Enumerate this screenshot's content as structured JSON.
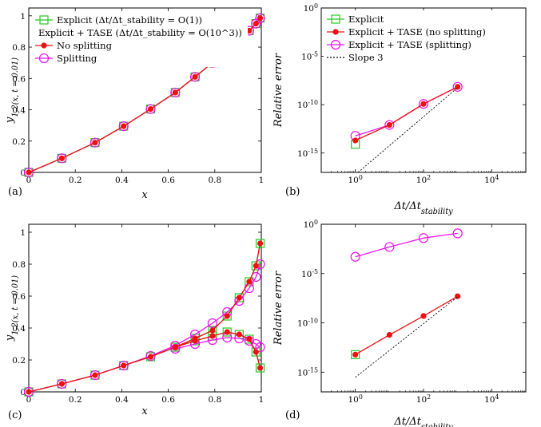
{
  "colors": {
    "explicit": "#22cc22",
    "tase_nosplit": "#ee1111",
    "tase_split": "#ee11ee",
    "slope": "#000000"
  },
  "chart_data": [
    {
      "id": "a",
      "type": "line",
      "panel_label": "(a)",
      "xlabel": "x",
      "ylabel": "y_1,2(x, t = 0.01)",
      "xlim": [
        0,
        1
      ],
      "ylim": [
        0,
        1.05
      ],
      "xticks": [
        0,
        0.2,
        0.4,
        0.6,
        0.8,
        1
      ],
      "xtick_labels": [
        "0",
        "0.2",
        "0.4",
        "0.6",
        "0.8",
        "1"
      ],
      "yticks": [
        0,
        0.2,
        0.4,
        0.6,
        0.8,
        1
      ],
      "ytick_labels": [
        "0",
        "0.2",
        "0.4",
        "0.6",
        "0.8",
        "1"
      ],
      "legend": {
        "position": "top-left",
        "entries": [
          {
            "series": "explicit",
            "label": "Explicit (Δt/Δt_stability = O(1))"
          },
          {
            "series": "tase_nosplit",
            "label": "Explicit + TASE (Δt/Δt_stability = O(10^3))"
          },
          {
            "series": "tase_nosplit",
            "label": "No splitting"
          },
          {
            "series": "tase_split",
            "label": "Splitting"
          }
        ]
      },
      "series": [
        {
          "key": "explicit",
          "name": "Explicit (Δt/Δt_stability = O(1))",
          "marker": "square",
          "x": [
            0,
            0.142,
            0.285,
            0.408,
            0.524,
            0.63,
            0.715,
            0.79,
            0.853,
            0.905,
            0.948,
            0.977,
            0.995
          ],
          "y": [
            0,
            0.09,
            0.19,
            0.295,
            0.405,
            0.51,
            0.61,
            0.7,
            0.78,
            0.85,
            0.905,
            0.95,
            0.985
          ]
        },
        {
          "key": "tase_split",
          "name": "Splitting",
          "marker": "circle",
          "x": [
            0,
            0.142,
            0.285,
            0.408,
            0.524,
            0.63,
            0.715,
            0.79,
            0.853,
            0.905,
            0.948,
            0.977,
            0.995
          ],
          "y": [
            0,
            0.09,
            0.19,
            0.295,
            0.405,
            0.51,
            0.61,
            0.7,
            0.78,
            0.85,
            0.905,
            0.95,
            0.985
          ]
        },
        {
          "key": "tase_nosplit",
          "name": "No splitting",
          "marker": "dot",
          "x": [
            0,
            0.142,
            0.285,
            0.408,
            0.524,
            0.63,
            0.715,
            0.79,
            0.853,
            0.905,
            0.948,
            0.977,
            0.995
          ],
          "y": [
            0,
            0.09,
            0.19,
            0.295,
            0.405,
            0.51,
            0.61,
            0.7,
            0.78,
            0.85,
            0.905,
            0.95,
            0.985
          ]
        }
      ]
    },
    {
      "id": "b",
      "type": "line",
      "panel_label": "(b)",
      "xscale": "log",
      "yscale": "log",
      "xlabel": "Δt/Δt_stability",
      "ylabel": "Relative error",
      "xlim": [
        0.1,
        100000
      ],
      "ylim": [
        1e-17,
        1
      ],
      "xticks": [
        1,
        100,
        10000
      ],
      "xtick_labels": [
        "10^0",
        "10^2",
        "10^4"
      ],
      "yticks": [
        1e-15,
        1e-10,
        1e-05,
        1
      ],
      "ytick_labels": [
        "10^-15",
        "10^-10",
        "10^-5",
        "10^0"
      ],
      "legend": {
        "position": "top-right",
        "entries": [
          {
            "series": "explicit",
            "label": "Explicit"
          },
          {
            "series": "tase_nosplit",
            "label": "Explicit + TASE (no splitting)"
          },
          {
            "series": "tase_split",
            "label": "Explicit + TASE (splitting)"
          },
          {
            "series": "slope",
            "label": "Slope 3"
          }
        ]
      },
      "series": [
        {
          "key": "explicit",
          "name": "Explicit",
          "marker": "square",
          "x": [
            1
          ],
          "y": [
            8e-15
          ]
        },
        {
          "key": "tase_split",
          "name": "Explicit + TASE (splitting)",
          "marker": "circle",
          "x": [
            1,
            10,
            100,
            1000
          ],
          "y": [
            6e-14,
            8e-13,
            1.2e-10,
            7e-09
          ]
        },
        {
          "key": "tase_nosplit",
          "name": "Explicit + TASE (no splitting)",
          "marker": "dot",
          "x": [
            1,
            10,
            100,
            1000
          ],
          "y": [
            2e-14,
            8e-13,
            1.2e-10,
            7e-09
          ]
        },
        {
          "key": "slope",
          "name": "Slope 3",
          "marker": "none",
          "dashed": true,
          "x": [
            1.2,
            1000
          ],
          "y": [
            1e-17,
            5.8e-09
          ]
        }
      ]
    },
    {
      "id": "c",
      "type": "line",
      "panel_label": "(c)",
      "xlabel": "x",
      "ylabel": "y_1,2(x, t = 0.01)",
      "xlim": [
        0,
        1
      ],
      "ylim": [
        0,
        1.05
      ],
      "xticks": [
        0,
        0.2,
        0.4,
        0.6,
        0.8,
        1
      ],
      "xtick_labels": [
        "0",
        "0.2",
        "0.4",
        "0.6",
        "0.8",
        "1"
      ],
      "yticks": [
        0,
        0.2,
        0.4,
        0.6,
        0.8,
        1
      ],
      "ytick_labels": [
        "0",
        "0.2",
        "0.4",
        "0.6",
        "0.8",
        "1"
      ],
      "series": [
        {
          "key": "explicit",
          "name": "y1 Explicit",
          "marker": "square",
          "x": [
            0,
            0.142,
            0.285,
            0.408,
            0.524,
            0.63,
            0.715,
            0.79,
            0.853,
            0.905,
            0.948,
            0.977,
            0.995
          ],
          "y": [
            0,
            0.05,
            0.105,
            0.165,
            0.22,
            0.28,
            0.335,
            0.385,
            0.475,
            0.59,
            0.69,
            0.79,
            0.93
          ]
        },
        {
          "key": "explicit",
          "name": "y2 Explicit",
          "marker": "square",
          "x": [
            0.63,
            0.715,
            0.79,
            0.853,
            0.905,
            0.948,
            0.977,
            0.995
          ],
          "y": [
            0.28,
            0.32,
            0.35,
            0.375,
            0.36,
            0.33,
            0.25,
            0.15
          ]
        },
        {
          "key": "tase_split",
          "name": "y1 Splitting",
          "marker": "circle",
          "x": [
            0,
            0.142,
            0.285,
            0.408,
            0.524,
            0.63,
            0.715,
            0.79,
            0.853,
            0.905,
            0.948,
            0.977,
            0.995
          ],
          "y": [
            0,
            0.05,
            0.105,
            0.165,
            0.225,
            0.29,
            0.36,
            0.43,
            0.5,
            0.57,
            0.65,
            0.72,
            0.8
          ]
        },
        {
          "key": "tase_split",
          "name": "y2 Splitting",
          "marker": "circle",
          "x": [
            0.63,
            0.715,
            0.79,
            0.853,
            0.905,
            0.948,
            0.977,
            0.995
          ],
          "y": [
            0.27,
            0.3,
            0.325,
            0.34,
            0.335,
            0.32,
            0.3,
            0.28
          ]
        },
        {
          "key": "tase_nosplit",
          "name": "y1 No splitting",
          "marker": "dot",
          "x": [
            0,
            0.142,
            0.285,
            0.408,
            0.524,
            0.63,
            0.715,
            0.79,
            0.853,
            0.905,
            0.948,
            0.977,
            0.995
          ],
          "y": [
            0,
            0.05,
            0.105,
            0.165,
            0.22,
            0.28,
            0.335,
            0.385,
            0.475,
            0.59,
            0.69,
            0.79,
            0.93
          ]
        },
        {
          "key": "tase_nosplit",
          "name": "y2 No splitting",
          "marker": "dot",
          "x": [
            0.63,
            0.715,
            0.79,
            0.853,
            0.905,
            0.948,
            0.977,
            0.995
          ],
          "y": [
            0.28,
            0.32,
            0.35,
            0.375,
            0.36,
            0.33,
            0.25,
            0.15
          ]
        }
      ]
    },
    {
      "id": "d",
      "type": "line",
      "panel_label": "(d)",
      "xscale": "log",
      "yscale": "log",
      "xlabel": "Δt/Δt_stability",
      "ylabel": "Relative error",
      "xlim": [
        0.1,
        100000
      ],
      "ylim": [
        1e-17,
        1
      ],
      "xticks": [
        1,
        100,
        10000
      ],
      "xtick_labels": [
        "10^0",
        "10^2",
        "10^4"
      ],
      "yticks": [
        1e-15,
        1e-10,
        1e-05,
        1
      ],
      "ytick_labels": [
        "10^-15",
        "10^-10",
        "10^-5",
        "10^0"
      ],
      "series": [
        {
          "key": "explicit",
          "name": "Explicit",
          "marker": "square",
          "x": [
            1
          ],
          "y": [
            6e-14
          ]
        },
        {
          "key": "tase_split",
          "name": "Explicit + TASE (splitting)",
          "marker": "circle",
          "x": [
            1,
            10,
            100,
            1000
          ],
          "y": [
            0.0005,
            0.005,
            0.04,
            0.12
          ]
        },
        {
          "key": "tase_nosplit",
          "name": "Explicit + TASE (no splitting)",
          "marker": "dot",
          "x": [
            1,
            10,
            100,
            1000
          ],
          "y": [
            6e-14,
            6e-12,
            5e-10,
            5e-08
          ]
        },
        {
          "key": "slope",
          "name": "Slope 3",
          "marker": "none",
          "dashed": true,
          "x": [
            1,
            1000
          ],
          "y": [
            3e-16,
            4.5e-08
          ]
        }
      ]
    }
  ]
}
